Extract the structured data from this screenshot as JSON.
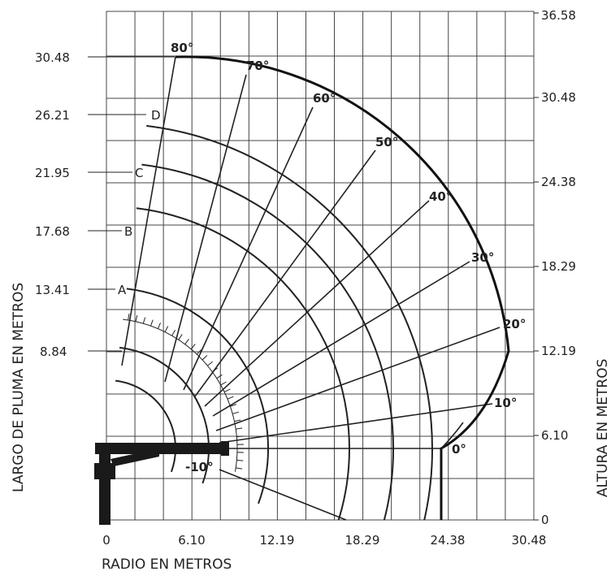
{
  "diagram": {
    "x_axis_label": "RADIO EN METROS",
    "left_axis_label": "LARGO DE PLUMA EN METROS",
    "right_axis_label": "ALTURA EN METROS",
    "x_ticks": [
      "0",
      "6.10",
      "12.19",
      "18.29",
      "24.38",
      "30.48"
    ],
    "right_ticks": [
      "0",
      "6.10",
      "12.19",
      "18.29",
      "24.38",
      "30.48",
      "36.58"
    ],
    "boom_lengths": [
      {
        "value": "30.48",
        "label": ""
      },
      {
        "value": "26.21",
        "label": "D"
      },
      {
        "value": "21.95",
        "label": "C"
      },
      {
        "value": "17.68",
        "label": "B"
      },
      {
        "value": "13.41",
        "label": "A"
      },
      {
        "value": "8.84",
        "label": ""
      }
    ],
    "angles": [
      "80°",
      "70°",
      "60°",
      "50°",
      "40°",
      "30°",
      "20°",
      "10°",
      "0°",
      "-10°"
    ]
  }
}
